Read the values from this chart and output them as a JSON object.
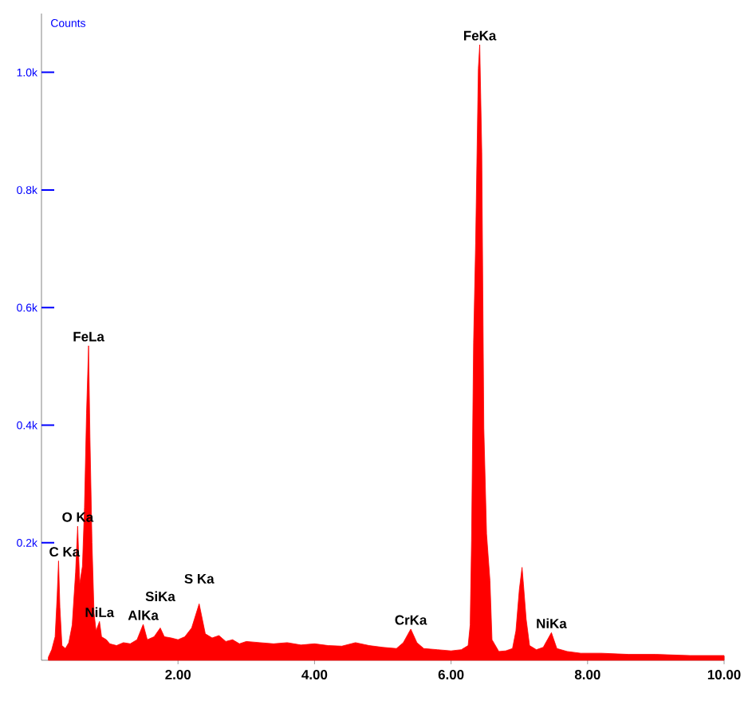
{
  "chart_data": {
    "type": "area",
    "ylabel": "Counts",
    "x": [
      0.1,
      0.15,
      0.2,
      0.23,
      0.25,
      0.27,
      0.3,
      0.35,
      0.4,
      0.45,
      0.5,
      0.53,
      0.56,
      0.6,
      0.63,
      0.66,
      0.69,
      0.71,
      0.74,
      0.77,
      0.8,
      0.85,
      0.88,
      0.95,
      1.0,
      1.1,
      1.2,
      1.3,
      1.4,
      1.49,
      1.55,
      1.65,
      1.74,
      1.8,
      1.9,
      2.0,
      2.1,
      2.2,
      2.31,
      2.4,
      2.5,
      2.6,
      2.7,
      2.8,
      2.9,
      3.0,
      3.2,
      3.4,
      3.6,
      3.8,
      4.0,
      4.2,
      4.4,
      4.6,
      4.8,
      5.0,
      5.2,
      5.3,
      5.41,
      5.5,
      5.6,
      5.8,
      6.0,
      6.15,
      6.25,
      6.28,
      6.3,
      6.33,
      6.36,
      6.4,
      6.42,
      6.45,
      6.48,
      6.52,
      6.57,
      6.6,
      6.7,
      6.8,
      6.9,
      6.95,
      7.0,
      7.04,
      7.06,
      7.1,
      7.15,
      7.25,
      7.35,
      7.47,
      7.55,
      7.7,
      7.9,
      8.2,
      8.6,
      9.0,
      9.5,
      10.0
    ],
    "series": [
      {
        "color": "#ff0000",
        "values": [
          5,
          18,
          40,
          110,
          169,
          90,
          25,
          20,
          30,
          60,
          150,
          228,
          130,
          160,
          260,
          420,
          535,
          380,
          200,
          80,
          50,
          66,
          40,
          35,
          28,
          25,
          30,
          28,
          35,
          61,
          35,
          40,
          55,
          40,
          38,
          35,
          40,
          55,
          96,
          45,
          38,
          42,
          32,
          35,
          28,
          32,
          30,
          28,
          30,
          26,
          28,
          25,
          24,
          30,
          25,
          22,
          20,
          30,
          53,
          30,
          20,
          18,
          16,
          18,
          25,
          60,
          203,
          540,
          710,
          1007,
          1047,
          864,
          395,
          215,
          135,
          35,
          15,
          16,
          20,
          50,
          120,
          158,
          130,
          70,
          25,
          18,
          22,
          47,
          20,
          15,
          12,
          12,
          10,
          10,
          8,
          8
        ]
      }
    ],
    "xlim": [
      0,
      10
    ],
    "ylim": [
      0,
      1100
    ],
    "xticks": [
      {
        "value": 2,
        "label": "2.00"
      },
      {
        "value": 4,
        "label": "4.00"
      },
      {
        "value": 6,
        "label": "6.00"
      },
      {
        "value": 8,
        "label": "8.00"
      },
      {
        "value": 10,
        "label": "10.00"
      }
    ],
    "yticks": [
      {
        "value": 200,
        "label": "0.2k"
      },
      {
        "value": 400,
        "label": "0.4k"
      },
      {
        "value": 600,
        "label": "0.6k"
      },
      {
        "value": 800,
        "label": "0.8k"
      },
      {
        "value": 1000,
        "label": "1.0k"
      }
    ],
    "annotations": [
      {
        "text": "C Ka",
        "x": 0.25,
        "y": 169
      },
      {
        "text": "O Ka",
        "x": 0.53,
        "y": 228
      },
      {
        "text": "FeLa",
        "x": 0.69,
        "y": 535
      },
      {
        "text": "NiLa",
        "x": 0.85,
        "y": 66
      },
      {
        "text": "AlKa",
        "x": 1.49,
        "y": 61
      },
      {
        "text": "SiKa",
        "x": 1.74,
        "y": 55
      },
      {
        "text": "S Ka",
        "x": 2.31,
        "y": 96
      },
      {
        "text": "CrKa",
        "x": 5.41,
        "y": 53
      },
      {
        "text": "FeKa",
        "x": 6.42,
        "y": 1047
      },
      {
        "text": "NiKa",
        "x": 7.47,
        "y": 47
      }
    ],
    "grid": false
  }
}
